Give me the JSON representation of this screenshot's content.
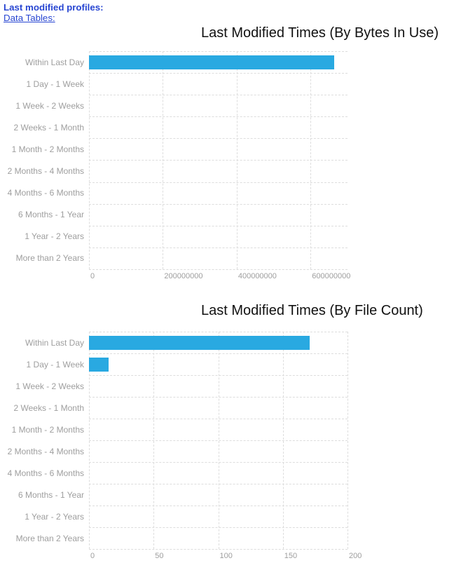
{
  "header": {
    "profiles_label": "Last modified profiles:",
    "data_tables_link": "Data Tables:"
  },
  "colors": {
    "bar": "#29a9e1",
    "grid": "#dddddd",
    "axis_text": "#9e9e9e",
    "category_text": "#9e9e9e",
    "title_text": "#111111",
    "link_blue": "#2846d2"
  },
  "chart_data": [
    {
      "type": "bar",
      "orientation": "horizontal",
      "title": "Last Modified Times (By Bytes In Use)",
      "categories": [
        "Within Last Day",
        "1 Day - 1 Week",
        "1 Week - 2 Weeks",
        "2 Weeks - 1 Month",
        "1 Month - 2 Months",
        "2 Months - 4 Months",
        "4 Months - 6 Months",
        "6 Months - 1 Year",
        "1 Year - 2 Years",
        "More than 2 Years"
      ],
      "values": [
        664000000,
        0,
        0,
        0,
        0,
        0,
        0,
        0,
        0,
        0
      ],
      "xlabel": "",
      "ylabel": "",
      "xticks": [
        0,
        200000000,
        400000000,
        600000000
      ],
      "xtick_labels": [
        "0",
        "200000000",
        "400000000",
        "600000000"
      ],
      "xlim": [
        0,
        700000000
      ],
      "grid": true,
      "legend": "none"
    },
    {
      "type": "bar",
      "orientation": "horizontal",
      "title": "Last Modified Times (By File Count)",
      "categories": [
        "Within Last Day",
        "1 Day - 1 Week",
        "1 Week - 2 Weeks",
        "2 Weeks - 1 Month",
        "1 Month - 2 Months",
        "2 Months - 4 Months",
        "4 Months - 6 Months",
        "6 Months - 1 Year",
        "1 Year - 2 Years",
        "More than 2 Years"
      ],
      "values": [
        171,
        15,
        0,
        0,
        0,
        0,
        0,
        0,
        0,
        0
      ],
      "xlabel": "",
      "ylabel": "",
      "xticks": [
        0,
        50,
        100,
        150,
        200
      ],
      "xtick_labels": [
        "0",
        "50",
        "100",
        "150",
        "200"
      ],
      "xlim": [
        0,
        200
      ],
      "grid": true,
      "legend": "none"
    }
  ]
}
